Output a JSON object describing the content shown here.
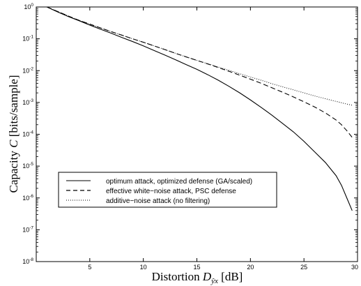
{
  "chart_data": {
    "type": "line",
    "xlabel": "Distortion D_ŷx [dB]",
    "xlabel_parts": {
      "prefix": "Distortion ",
      "symbol": "D",
      "subscript": "ŷx",
      "suffix": " [dB]"
    },
    "ylabel": "Capacity C [bits/sample]",
    "ylabel_parts": {
      "prefix": "Capacity ",
      "symbol": "C",
      "suffix": " [bits/sample]"
    },
    "xlim": [
      0,
      30
    ],
    "ylim": [
      1e-08,
      1
    ],
    "yscale": "log",
    "x_ticks": [
      "5",
      "10",
      "15",
      "20",
      "25",
      "30"
    ],
    "y_ticks": [
      {
        "base": "10",
        "exp": "0"
      },
      {
        "base": "10",
        "exp": "-1"
      },
      {
        "base": "10",
        "exp": "-2"
      },
      {
        "base": "10",
        "exp": "-3"
      },
      {
        "base": "10",
        "exp": "-4"
      },
      {
        "base": "10",
        "exp": "-5"
      },
      {
        "base": "10",
        "exp": "-6"
      },
      {
        "base": "10",
        "exp": "-7"
      },
      {
        "base": "10",
        "exp": "-8"
      }
    ],
    "grid": false,
    "legend_position": "lower-left",
    "series": [
      {
        "name": "optimum attack, optimized defense (GA/scaled)",
        "style": "solid",
        "x": [
          1,
          2,
          3,
          4,
          5,
          6,
          7,
          8,
          9,
          10,
          11,
          12,
          13,
          14,
          15,
          16,
          17,
          18,
          19,
          20,
          21,
          22,
          23,
          24,
          25,
          26,
          27,
          28,
          28.5,
          29,
          29.5
        ],
        "y": [
          1.0,
          0.7,
          0.5,
          0.37,
          0.27,
          0.2,
          0.15,
          0.11,
          0.082,
          0.06,
          0.043,
          0.031,
          0.022,
          0.0155,
          0.011,
          0.0075,
          0.005,
          0.0032,
          0.002,
          0.0012,
          0.0007,
          0.0004,
          0.00022,
          0.00012,
          6e-05,
          2.8e-05,
          1.3e-05,
          5e-06,
          2.5e-06,
          1e-06,
          4e-07
        ]
      },
      {
        "name": "effective white−noise attack, PSC defense",
        "style": "dashed",
        "x": [
          1,
          2,
          3,
          4,
          5,
          6,
          7,
          8,
          9,
          10,
          11,
          12,
          13,
          14,
          15,
          16,
          17,
          18,
          19,
          20,
          21,
          22,
          23,
          24,
          25,
          26,
          27,
          28,
          28.5,
          29,
          29.5
        ],
        "y": [
          1.0,
          0.72,
          0.52,
          0.38,
          0.29,
          0.22,
          0.168,
          0.13,
          0.1,
          0.078,
          0.06,
          0.046,
          0.035,
          0.027,
          0.021,
          0.0163,
          0.0125,
          0.0095,
          0.0072,
          0.0054,
          0.004,
          0.0029,
          0.0021,
          0.0015,
          0.00105,
          0.00072,
          0.00047,
          0.00028,
          0.0002,
          0.00013,
          8e-05
        ]
      },
      {
        "name": "additive−noise attack (no filtering)",
        "style": "dotted",
        "x": [
          1,
          2,
          3,
          4,
          5,
          6,
          7,
          8,
          9,
          10,
          11,
          12,
          13,
          14,
          15,
          16,
          17,
          18,
          19,
          20,
          21,
          22,
          23,
          24,
          25,
          26,
          27,
          28,
          29,
          29.5
        ],
        "y": [
          1.0,
          0.72,
          0.52,
          0.38,
          0.29,
          0.22,
          0.168,
          0.13,
          0.1,
          0.078,
          0.06,
          0.046,
          0.035,
          0.027,
          0.021,
          0.0165,
          0.013,
          0.0102,
          0.008,
          0.0063,
          0.005,
          0.0039,
          0.0031,
          0.0025,
          0.002,
          0.0016,
          0.00131,
          0.00108,
          0.00089,
          0.00082
        ]
      }
    ]
  }
}
